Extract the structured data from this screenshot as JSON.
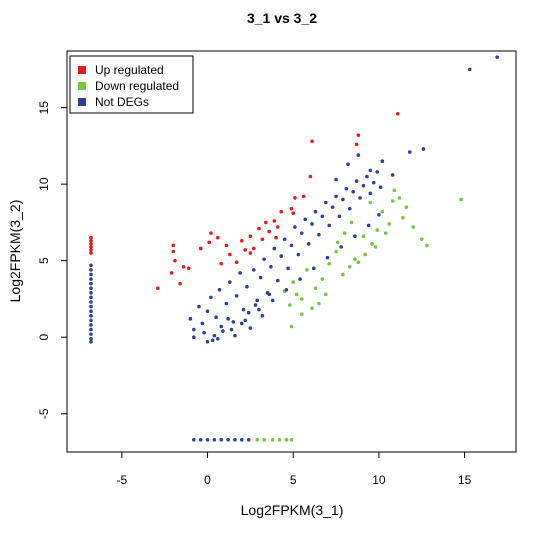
{
  "chart_data": {
    "type": "scatter",
    "title": "3_1 vs 3_2",
    "xlabel": "Log2FPKM(3_1)",
    "ylabel": "Log2FPKM(3_2)",
    "xlim": [
      -8.2,
      18.0
    ],
    "ylim": [
      -7.5,
      18.7
    ],
    "x_ticks": [
      -5,
      0,
      5,
      10,
      15
    ],
    "y_ticks": [
      -5,
      0,
      5,
      10,
      15
    ],
    "grid": false,
    "legend_position": "top-left",
    "legend": [
      {
        "label": "Up regulated",
        "color": "#e41a1c"
      },
      {
        "label": "Down regulated",
        "color": "#74c43f"
      },
      {
        "label": "Not DEGs",
        "color": "#2e3f96"
      }
    ],
    "series": [
      {
        "name": "Up regulated",
        "color": "#e41a1c",
        "points": [
          [
            11.1,
            14.6
          ],
          [
            6.1,
            12.8
          ],
          [
            8.7,
            12.6
          ],
          [
            8.8,
            13.2
          ],
          [
            6.0,
            10.5
          ],
          [
            5.1,
            9.1
          ],
          [
            4.9,
            8.4
          ],
          [
            5.6,
            9.2
          ],
          [
            5.0,
            8.1
          ],
          [
            -2.9,
            3.2
          ],
          [
            -2.1,
            4.2
          ],
          [
            -1.9,
            5.0
          ],
          [
            -2.0,
            5.6
          ],
          [
            -1.4,
            4.6
          ],
          [
            -1.1,
            4.5
          ],
          [
            -1.6,
            3.5
          ],
          [
            -2.0,
            6.0
          ],
          [
            -0.4,
            5.8
          ],
          [
            0.1,
            6.2
          ],
          [
            0.2,
            6.8
          ],
          [
            0.6,
            6.5
          ],
          [
            1.1,
            6.0
          ],
          [
            0.8,
            4.8
          ],
          [
            1.3,
            5.4
          ],
          [
            1.7,
            4.9
          ],
          [
            2.0,
            6.3
          ],
          [
            2.2,
            5.7
          ],
          [
            2.5,
            6.6
          ],
          [
            2.7,
            5.8
          ],
          [
            3.0,
            7.1
          ],
          [
            3.2,
            6.4
          ],
          [
            3.4,
            7.5
          ],
          [
            3.6,
            6.9
          ],
          [
            3.9,
            7.6
          ],
          [
            4.1,
            7.2
          ],
          [
            4.3,
            8.2
          ],
          [
            4.0,
            6.5
          ],
          [
            2.5,
            5.5
          ],
          [
            -6.8,
            5.7
          ],
          [
            -6.8,
            5.9
          ],
          [
            -6.8,
            6.1
          ],
          [
            -6.8,
            6.3
          ],
          [
            -6.8,
            6.5
          ],
          [
            -6.8,
            5.5
          ]
        ]
      },
      {
        "name": "Down regulated",
        "color": "#74c43f",
        "points": [
          [
            14.8,
            9.0
          ],
          [
            12.5,
            6.4
          ],
          [
            12.0,
            7.2
          ],
          [
            11.4,
            7.8
          ],
          [
            11.6,
            8.5
          ],
          [
            11.2,
            9.1
          ],
          [
            10.9,
            9.6
          ],
          [
            10.2,
            8.2
          ],
          [
            10.4,
            6.8
          ],
          [
            9.9,
            7.0
          ],
          [
            9.6,
            6.1
          ],
          [
            9.2,
            5.4
          ],
          [
            9.1,
            6.6
          ],
          [
            8.6,
            5.1
          ],
          [
            8.3,
            4.6
          ],
          [
            7.9,
            4.1
          ],
          [
            7.5,
            5.6
          ],
          [
            7.1,
            4.8
          ],
          [
            6.7,
            3.8
          ],
          [
            6.3,
            3.2
          ],
          [
            6.9,
            2.8
          ],
          [
            6.1,
            1.9
          ],
          [
            5.5,
            2.5
          ],
          [
            5.0,
            3.6
          ],
          [
            4.8,
            2.1
          ],
          [
            5.5,
            1.5
          ],
          [
            4.5,
            3.0
          ],
          [
            5.8,
            4.4
          ],
          [
            8.0,
            6.8
          ],
          [
            8.4,
            7.5
          ],
          [
            7.6,
            6.2
          ],
          [
            10.8,
            8.9
          ],
          [
            9.5,
            8.8
          ],
          [
            12.8,
            6.0
          ],
          [
            6.5,
            2.2
          ],
          [
            4.9,
            0.7
          ],
          [
            5.2,
            2.8
          ],
          [
            9.8,
            5.9
          ],
          [
            10.6,
            7.4
          ],
          [
            8.8,
            4.9
          ],
          [
            2.9,
            -6.7
          ],
          [
            3.3,
            -6.7
          ],
          [
            3.8,
            -6.7
          ],
          [
            4.2,
            -6.7
          ],
          [
            4.6,
            -6.7
          ],
          [
            4.9,
            -6.7
          ]
        ]
      },
      {
        "name": "Not DEGs",
        "color": "#2e3f96",
        "points": [
          [
            16.9,
            18.3
          ],
          [
            15.3,
            17.5
          ],
          [
            12.6,
            12.3
          ],
          [
            11.8,
            12.1
          ],
          [
            8.2,
            11.3
          ],
          [
            9.5,
            10.9
          ],
          [
            10.2,
            11.5
          ],
          [
            10.8,
            10.6
          ],
          [
            7.5,
            10.3
          ],
          [
            8.8,
            11.9
          ],
          [
            -6.8,
            4.7
          ],
          [
            -6.8,
            4.4
          ],
          [
            -6.8,
            4.1
          ],
          [
            -6.8,
            3.8
          ],
          [
            -6.8,
            3.5
          ],
          [
            -6.8,
            3.2
          ],
          [
            -6.8,
            2.9
          ],
          [
            -6.8,
            2.6
          ],
          [
            -6.8,
            2.3
          ],
          [
            -6.8,
            2.0
          ],
          [
            -6.8,
            1.7
          ],
          [
            -6.8,
            1.4
          ],
          [
            -6.8,
            1.1
          ],
          [
            -6.8,
            0.8
          ],
          [
            -6.8,
            0.5
          ],
          [
            -6.8,
            0.2
          ],
          [
            -6.8,
            -0.1
          ],
          [
            -6.8,
            -0.3
          ],
          [
            -0.8,
            -6.7
          ],
          [
            -0.4,
            -6.7
          ],
          [
            0.0,
            -6.7
          ],
          [
            0.4,
            -6.7
          ],
          [
            0.8,
            -6.7
          ],
          [
            1.2,
            -6.7
          ],
          [
            1.6,
            -6.7
          ],
          [
            2.0,
            -6.7
          ],
          [
            2.4,
            -6.7
          ],
          [
            -1.0,
            1.2
          ],
          [
            -0.8,
            0.5
          ],
          [
            -0.5,
            2.0
          ],
          [
            -0.3,
            0.9
          ],
          [
            0.0,
            1.7
          ],
          [
            0.2,
            2.6
          ],
          [
            0.3,
            -0.2
          ],
          [
            0.5,
            1.3
          ],
          [
            0.7,
            3.1
          ],
          [
            0.9,
            0.4
          ],
          [
            1.1,
            2.2
          ],
          [
            1.3,
            3.6
          ],
          [
            1.5,
            1.0
          ],
          [
            1.7,
            2.7
          ],
          [
            1.9,
            4.2
          ],
          [
            2.1,
            1.8
          ],
          [
            2.3,
            3.3
          ],
          [
            2.5,
            0.6
          ],
          [
            2.7,
            4.4
          ],
          [
            2.9,
            2.4
          ],
          [
            3.1,
            3.9
          ],
          [
            3.3,
            5.1
          ],
          [
            3.5,
            2.9
          ],
          [
            3.7,
            4.6
          ],
          [
            3.9,
            5.8
          ],
          [
            4.1,
            3.7
          ],
          [
            4.3,
            5.3
          ],
          [
            4.5,
            6.4
          ],
          [
            4.7,
            4.5
          ],
          [
            4.9,
            6.0
          ],
          [
            5.1,
            7.2
          ],
          [
            5.3,
            5.4
          ],
          [
            5.5,
            6.8
          ],
          [
            5.7,
            7.7
          ],
          [
            5.9,
            6.1
          ],
          [
            6.1,
            7.4
          ],
          [
            6.3,
            8.2
          ],
          [
            6.5,
            6.7
          ],
          [
            6.7,
            7.9
          ],
          [
            6.9,
            8.8
          ],
          [
            7.1,
            7.3
          ],
          [
            7.3,
            8.5
          ],
          [
            7.5,
            9.2
          ],
          [
            7.7,
            7.9
          ],
          [
            7.9,
            9.0
          ],
          [
            8.1,
            9.7
          ],
          [
            8.3,
            8.4
          ],
          [
            8.5,
            9.5
          ],
          [
            8.7,
            10.2
          ],
          [
            8.9,
            9.1
          ],
          [
            9.1,
            9.9
          ],
          [
            9.3,
            10.5
          ],
          [
            9.5,
            9.4
          ],
          [
            9.7,
            10.1
          ],
          [
            9.9,
            10.8
          ],
          [
            10.1,
            9.8
          ],
          [
            0.0,
            -0.3
          ],
          [
            0.4,
            0.1
          ],
          [
            0.8,
            0.7
          ],
          [
            1.2,
            1.2
          ],
          [
            1.6,
            0.1
          ],
          [
            2.0,
            0.9
          ],
          [
            2.4,
            1.6
          ],
          [
            2.8,
            2.1
          ],
          [
            3.2,
            1.4
          ],
          [
            3.6,
            2.8
          ],
          [
            -0.8,
            0.0
          ],
          [
            -0.2,
            0.3
          ],
          [
            0.6,
            -0.1
          ],
          [
            1.4,
            0.5
          ],
          [
            2.2,
            1.1
          ],
          [
            3.0,
            1.8
          ],
          [
            3.8,
            2.4
          ],
          [
            4.6,
            3.1
          ],
          [
            5.4,
            3.8
          ],
          [
            6.2,
            4.5
          ],
          [
            7.0,
            5.2
          ],
          [
            7.8,
            5.9
          ],
          [
            8.6,
            6.6
          ],
          [
            9.4,
            7.3
          ],
          [
            10.0,
            8.0
          ]
        ]
      }
    ]
  }
}
